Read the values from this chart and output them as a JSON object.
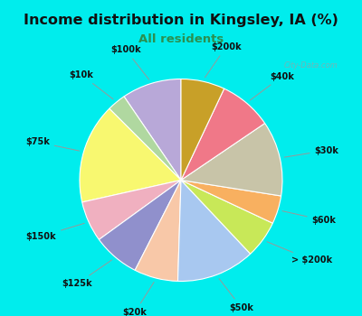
{
  "title": "Income distribution in Kingsley, IA (%)",
  "subtitle": "All residents",
  "watermark": "City-Data.com",
  "bg_cyan": "#00EDED",
  "bg_chart": "#d8f0e4",
  "labels": [
    "$100k",
    "$10k",
    "$75k",
    "$150k",
    "$125k",
    "$20k",
    "$50k",
    "> $200k",
    "$60k",
    "$30k",
    "$40k",
    "$200k"
  ],
  "sizes": [
    9.5,
    3.0,
    16.0,
    6.5,
    7.5,
    7.0,
    12.5,
    6.0,
    4.5,
    12.0,
    8.5,
    7.0
  ],
  "colors": [
    "#b8a8d8",
    "#b0d8a0",
    "#f8f870",
    "#f0b0c0",
    "#9090cc",
    "#f8c8a8",
    "#a8c8f0",
    "#c8e858",
    "#f8b060",
    "#c8c4a8",
    "#f07888",
    "#c8a028"
  ],
  "startangle": 90,
  "title_fontsize": 11.5,
  "subtitle_fontsize": 9.5,
  "subtitle_color": "#2a9050",
  "label_fontsize": 7.0
}
